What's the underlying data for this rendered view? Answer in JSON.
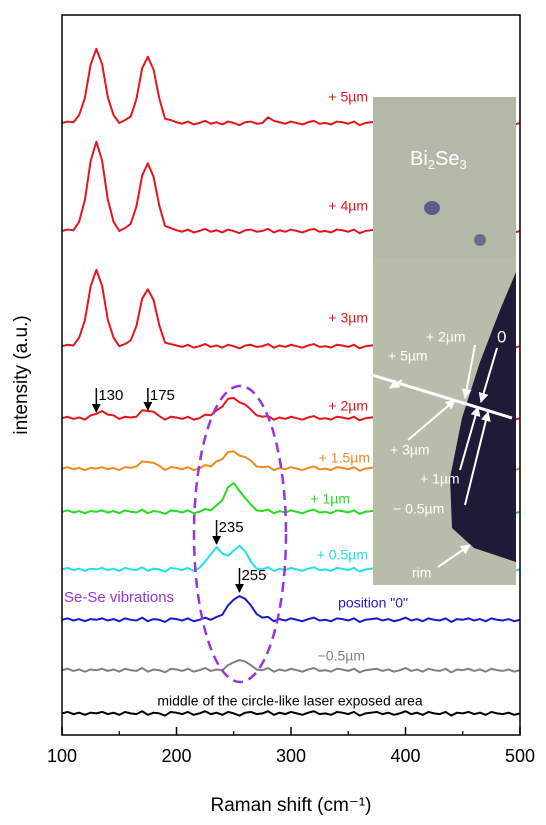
{
  "chart_data": {
    "type": "line",
    "xlabel": "Raman shift (cm⁻¹)",
    "ylabel": "intensity (a.u.)",
    "xlim": [
      100,
      500
    ],
    "xticks": [
      100,
      200,
      300,
      400,
      500
    ],
    "xticks_minor": [
      150,
      250,
      350,
      450
    ],
    "ylim": [
      0,
      100
    ],
    "x": [
      100,
      105,
      110,
      115,
      120,
      125,
      130,
      135,
      140,
      145,
      150,
      155,
      160,
      165,
      170,
      175,
      180,
      185,
      190,
      195,
      200,
      205,
      210,
      215,
      220,
      225,
      230,
      235,
      240,
      245,
      250,
      255,
      260,
      265,
      270,
      275,
      280,
      285,
      290,
      295,
      300,
      305,
      310,
      315,
      320,
      325,
      330,
      335,
      340,
      345,
      350,
      355,
      360,
      365,
      370,
      375,
      380,
      385,
      390,
      395,
      400,
      405,
      410,
      415,
      420,
      425,
      430,
      435,
      440,
      445,
      450,
      455,
      460,
      465,
      470,
      475,
      480,
      485,
      490,
      495,
      500
    ],
    "series": [
      {
        "name": "+ 5µm",
        "color": "#e8141c",
        "values": [
          85.0,
          85.2,
          85.1,
          86.1,
          88.5,
          93.1,
          95.3,
          93.2,
          88.6,
          86.1,
          85.0,
          85.4,
          85.9,
          88.3,
          92.6,
          94.2,
          92.4,
          88.4,
          85.6,
          85.4,
          85.1,
          84.9,
          85.2,
          84.8,
          85.0,
          85.3,
          84.9,
          85.1,
          84.8,
          85.2,
          85.0,
          84.7,
          85.1,
          85.2,
          84.9,
          85.0,
          85.8,
          85.3,
          85.1,
          84.9,
          85.2,
          85.0,
          84.8,
          85.1,
          85.3,
          84.9,
          85.0,
          84.8,
          85.2,
          85.1,
          84.9,
          85.2,
          84.7,
          85.0,
          85.1,
          85.2,
          84.9,
          85.1,
          84.8,
          85.0,
          85.3,
          84.9,
          85.1,
          84.8,
          85.2,
          85.0,
          84.9,
          85.2,
          84.7,
          85.1,
          85.0,
          85.2,
          84.9,
          85.1,
          84.8,
          85.2,
          85.0,
          84.9,
          85.1,
          84.8,
          85.0
        ]
      },
      {
        "name": "+ 4µm",
        "color": "#e8141c",
        "values": [
          70.0,
          70.2,
          70.1,
          71.3,
          74.3,
          79.7,
          82.4,
          79.8,
          74.4,
          71.3,
          70.0,
          70.4,
          71.0,
          73.4,
          77.7,
          79.4,
          77.5,
          73.5,
          70.7,
          70.4,
          70.1,
          69.9,
          70.2,
          69.8,
          70.0,
          70.3,
          69.9,
          70.1,
          69.8,
          70.2,
          70.0,
          69.7,
          70.1,
          70.2,
          69.9,
          70.0,
          70.3,
          69.8,
          70.1,
          69.9,
          70.2,
          70.0,
          69.8,
          70.1,
          70.3,
          69.9,
          70.0,
          69.8,
          70.2,
          70.1,
          69.9,
          70.2,
          69.7,
          70.0,
          70.1,
          70.2,
          69.9,
          70.1,
          69.8,
          70.0,
          70.3,
          69.9,
          70.1,
          69.8,
          70.2,
          70.0,
          69.9,
          70.2,
          69.7,
          70.1,
          70.0,
          70.2,
          69.9,
          70.1,
          69.8,
          70.2,
          70.0,
          69.9,
          70.1,
          69.8,
          70.0
        ]
      },
      {
        "name": "+ 3µm",
        "color": "#e8141c",
        "values": [
          54.0,
          54.2,
          54.1,
          55.2,
          57.6,
          62.3,
          64.6,
          62.4,
          57.7,
          55.2,
          54.0,
          54.3,
          54.8,
          56.8,
          60.6,
          61.9,
          60.4,
          56.9,
          54.5,
          54.3,
          54.1,
          53.9,
          54.2,
          53.8,
          54.0,
          54.3,
          53.9,
          54.1,
          53.8,
          54.2,
          54.0,
          53.7,
          54.1,
          54.2,
          53.9,
          54.0,
          54.3,
          53.8,
          54.1,
          53.9,
          54.2,
          54.0,
          53.8,
          54.1,
          54.3,
          53.9,
          54.0,
          53.8,
          54.2,
          54.1,
          53.9,
          54.2,
          53.7,
          54.0,
          54.1,
          54.2,
          53.9,
          54.1,
          53.8,
          54.0,
          54.3,
          53.9,
          54.1,
          53.8,
          54.2,
          54.0,
          53.9,
          54.2,
          53.7,
          54.1,
          54.0,
          54.2,
          53.9,
          54.1,
          53.8,
          54.2,
          54.0,
          53.9,
          54.1,
          53.8,
          54.0
        ]
      },
      {
        "name": "+ 2µm",
        "color": "#e8141c",
        "values": [
          44.0,
          44.2,
          43.9,
          44.1,
          43.8,
          44.4,
          44.6,
          45.0,
          44.5,
          44.4,
          43.9,
          44.2,
          44.1,
          44.2,
          45.1,
          45.0,
          44.9,
          44.3,
          43.8,
          44.2,
          44.1,
          43.9,
          44.2,
          43.8,
          44.0,
          44.5,
          44.4,
          45.1,
          45.6,
          46.7,
          46.8,
          46.2,
          45.9,
          45.2,
          44.4,
          44.2,
          44.3,
          43.8,
          44.1,
          43.9,
          44.2,
          44.0,
          43.8,
          44.1,
          44.3,
          43.9,
          44.0,
          43.8,
          44.2,
          44.1,
          43.9,
          44.2,
          43.7,
          44.0,
          44.1,
          44.2,
          43.9,
          44.1,
          43.8,
          44.0,
          44.3,
          43.9,
          44.1,
          43.8,
          44.2,
          44.0,
          43.9,
          44.2,
          43.7,
          44.1,
          44.0,
          44.2,
          43.9,
          44.1,
          43.8,
          44.2,
          44.0,
          43.9,
          44.1,
          43.8,
          44.0
        ]
      },
      {
        "name": "+ 1.5µm",
        "color": "#f08a1e",
        "values": [
          37.0,
          37.2,
          36.9,
          37.1,
          36.8,
          37.1,
          37.0,
          37.2,
          36.9,
          37.1,
          36.8,
          37.2,
          37.1,
          37.3,
          38.0,
          37.9,
          37.8,
          37.4,
          36.8,
          37.2,
          37.1,
          36.9,
          37.2,
          36.8,
          37.0,
          37.5,
          37.3,
          38.0,
          38.3,
          39.3,
          39.4,
          38.8,
          38.6,
          38.1,
          37.3,
          37.2,
          37.3,
          36.8,
          37.1,
          36.9,
          37.2,
          37.0,
          36.8,
          37.1,
          37.3,
          36.9,
          37.0,
          36.8,
          37.2,
          37.1,
          36.9,
          37.2,
          36.7,
          37.0,
          37.1,
          37.2,
          36.9,
          37.1,
          36.8,
          37.0,
          37.3,
          36.9,
          37.1,
          36.8,
          37.2,
          37.0,
          36.9,
          37.2,
          36.7,
          37.1,
          37.0,
          37.2,
          36.9,
          37.1,
          36.8,
          37.2,
          37.0,
          36.9,
          37.1,
          36.8,
          37.0
        ]
      },
      {
        "name": "+ 1µm",
        "color": "#22dd22",
        "values": [
          31.0,
          31.2,
          30.9,
          31.1,
          30.8,
          31.1,
          31.0,
          31.2,
          30.9,
          31.1,
          30.8,
          31.2,
          31.0,
          30.9,
          31.3,
          30.8,
          31.1,
          31.0,
          30.7,
          31.2,
          31.1,
          30.9,
          31.2,
          30.8,
          31.0,
          31.4,
          31.2,
          31.9,
          32.6,
          34.4,
          35.0,
          33.9,
          32.9,
          32.0,
          31.2,
          31.1,
          31.3,
          30.8,
          31.1,
          30.9,
          31.2,
          31.0,
          30.8,
          31.1,
          31.3,
          30.9,
          31.0,
          30.8,
          31.2,
          31.1,
          30.9,
          31.2,
          30.7,
          31.0,
          31.1,
          31.2,
          30.9,
          31.1,
          30.8,
          31.0,
          31.3,
          30.9,
          31.1,
          30.8,
          31.2,
          31.0,
          30.9,
          31.2,
          30.7,
          31.1,
          31.0,
          31.2,
          30.9,
          31.1,
          30.8,
          31.2,
          31.0,
          30.9,
          31.1,
          30.8,
          31.0
        ]
      },
      {
        "name": "+ 0.5µm",
        "color": "#22e0e8",
        "values": [
          23.0,
          23.2,
          22.9,
          23.1,
          22.8,
          23.1,
          23.0,
          23.2,
          22.9,
          23.1,
          22.8,
          23.2,
          23.0,
          22.9,
          23.3,
          22.8,
          23.1,
          23.0,
          22.7,
          23.2,
          23.1,
          22.9,
          23.2,
          22.8,
          23.2,
          24.1,
          25.1,
          26.1,
          25.2,
          24.9,
          25.6,
          26.3,
          25.5,
          24.1,
          23.1,
          23.0,
          23.3,
          22.8,
          23.1,
          22.9,
          23.2,
          23.0,
          22.8,
          23.1,
          23.3,
          22.9,
          23.0,
          22.8,
          23.2,
          23.1,
          22.9,
          23.2,
          22.7,
          23.0,
          23.1,
          23.2,
          22.9,
          23.1,
          22.8,
          23.0,
          23.3,
          22.9,
          23.1,
          22.8,
          23.2,
          23.0,
          22.9,
          23.2,
          22.7,
          23.1,
          23.0,
          23.2,
          22.9,
          23.1,
          22.8,
          23.2,
          23.0,
          22.9,
          23.1,
          22.8,
          23.0
        ]
      },
      {
        "name": "position \"0\"",
        "color": "#1a1acc",
        "values": [
          16.0,
          16.2,
          15.9,
          16.1,
          15.8,
          16.1,
          16.0,
          16.2,
          15.9,
          16.1,
          15.8,
          16.2,
          16.0,
          15.9,
          16.3,
          15.8,
          16.1,
          16.0,
          15.7,
          16.2,
          16.1,
          15.9,
          16.2,
          15.8,
          16.0,
          16.3,
          16.0,
          16.4,
          16.7,
          18.0,
          18.8,
          19.3,
          18.9,
          18.0,
          16.8,
          16.3,
          16.4,
          15.8,
          16.1,
          15.9,
          16.2,
          16.0,
          15.8,
          16.1,
          16.3,
          15.9,
          16.0,
          15.8,
          16.2,
          16.1,
          15.9,
          16.2,
          15.7,
          16.0,
          16.1,
          16.2,
          15.9,
          16.1,
          15.8,
          16.0,
          16.3,
          15.9,
          16.1,
          15.8,
          16.2,
          16.0,
          15.9,
          16.2,
          15.7,
          16.1,
          16.0,
          16.2,
          15.9,
          16.1,
          15.8,
          16.2,
          16.0,
          15.9,
          16.1,
          15.8,
          16.0
        ]
      },
      {
        "name": "−0.5µm",
        "color": "#808080",
        "values": [
          9.0,
          9.2,
          8.9,
          9.1,
          8.8,
          9.1,
          9.0,
          9.2,
          8.9,
          9.1,
          8.8,
          9.2,
          9.0,
          8.9,
          9.3,
          8.8,
          9.1,
          9.0,
          8.7,
          9.2,
          9.1,
          8.9,
          9.2,
          8.8,
          9.0,
          9.3,
          8.9,
          9.1,
          9.0,
          9.7,
          10.1,
          10.4,
          10.2,
          9.7,
          9.1,
          9.0,
          9.3,
          8.8,
          9.1,
          8.9,
          9.2,
          9.0,
          8.8,
          9.1,
          9.3,
          8.9,
          9.0,
          8.8,
          9.2,
          9.1,
          8.9,
          9.2,
          8.7,
          9.0,
          9.1,
          9.2,
          8.9,
          9.1,
          8.8,
          9.0,
          9.3,
          8.9,
          9.1,
          8.8,
          9.2,
          9.0,
          8.9,
          9.2,
          8.7,
          9.1,
          9.0,
          9.2,
          8.9,
          9.1,
          8.8,
          9.2,
          9.0,
          8.9,
          9.1,
          8.8,
          9.0
        ]
      },
      {
        "name": "middle of the circle-like laser exposed area",
        "color": "#000000",
        "values": [
          3.0,
          3.2,
          2.9,
          3.1,
          2.8,
          3.1,
          3.0,
          3.2,
          2.9,
          3.1,
          2.8,
          3.2,
          3.0,
          2.9,
          3.3,
          2.8,
          3.1,
          3.0,
          2.7,
          3.2,
          3.1,
          2.9,
          3.2,
          2.8,
          3.0,
          3.3,
          2.9,
          3.1,
          2.8,
          3.2,
          3.0,
          2.7,
          3.1,
          3.2,
          2.9,
          3.0,
          3.3,
          2.8,
          3.1,
          2.9,
          3.2,
          3.0,
          2.8,
          3.1,
          3.3,
          2.9,
          3.0,
          2.8,
          3.2,
          3.1,
          2.9,
          3.2,
          2.7,
          3.0,
          3.1,
          3.2,
          2.9,
          3.1,
          2.8,
          3.0,
          3.3,
          2.9,
          3.1,
          2.8,
          3.2,
          3.0,
          2.9,
          3.2,
          2.7,
          3.1,
          3.0,
          3.2,
          2.9,
          3.1,
          2.8,
          3.2,
          3.0,
          2.9,
          3.1,
          2.8,
          3.0
        ]
      }
    ],
    "annotations": [
      {
        "text": "130",
        "x": 130
      },
      {
        "text": "175",
        "x": 175
      },
      {
        "text": "235",
        "x": 235
      },
      {
        "text": "255",
        "x": 255
      }
    ],
    "group_label": "Se-Se vibrations",
    "inset": {
      "title": [
        "Bi",
        "2",
        "Se",
        "3"
      ],
      "labels": [
        "+ 2µm",
        "0",
        "+ 5µm",
        "+ 3µm",
        "+ 1µm",
        "− 0.5µm",
        "rim"
      ]
    }
  }
}
